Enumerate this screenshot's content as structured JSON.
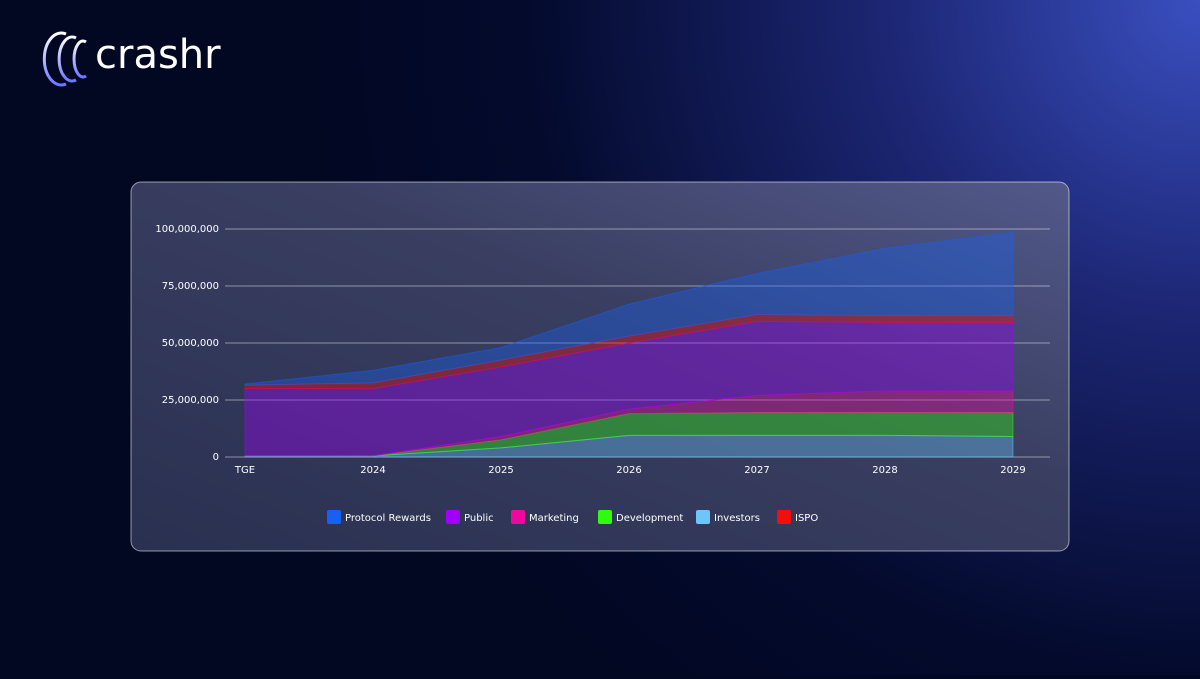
{
  "brand": "crashr",
  "chart_data": {
    "type": "stacked-area",
    "categories": [
      "TGE",
      "2024",
      "2025",
      "2026",
      "2027",
      "2028",
      "2029"
    ],
    "series": [
      {
        "name": "Protocol Rewards",
        "color": "#1560f5",
        "values": [
          500000,
          5500000,
          5500000,
          14000000,
          18000000,
          29500000,
          36500000
        ]
      },
      {
        "name": "Public",
        "color": "#a100ff",
        "values": [
          29500000,
          29500000,
          30500000,
          29000000,
          32500000,
          30000000,
          30000000
        ]
      },
      {
        "name": "Marketing",
        "color": "#f0079d",
        "values": [
          0,
          0,
          1500000,
          2000000,
          7500000,
          9500000,
          9500000
        ]
      },
      {
        "name": "Development",
        "color": "#2ffb0b",
        "values": [
          0,
          0,
          3500000,
          9500000,
          10000000,
          10000000,
          10500000
        ]
      },
      {
        "name": "Investors",
        "color": "#6ac6fb",
        "values": [
          500000,
          500000,
          4000000,
          9500000,
          9500000,
          9500000,
          9000000
        ]
      },
      {
        "name": "ISPO",
        "color": "#f30d0d",
        "values": [
          1500000,
          2500000,
          3000000,
          3000000,
          3000000,
          3000000,
          3000000
        ]
      }
    ],
    "ylim": [
      0,
      100000000
    ],
    "yticks": [
      0,
      {
        "value": 25000000,
        "label": "25,000,000"
      },
      {
        "value": 50000000,
        "label": "50,000,000"
      },
      {
        "value": 75000000,
        "label": "75,000,000"
      },
      {
        "value": 100000000,
        "label": "100,000,000"
      }
    ],
    "grid": true,
    "legend": "bottom"
  }
}
